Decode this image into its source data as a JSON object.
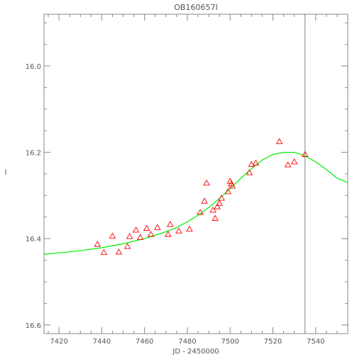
{
  "chart_data": {
    "type": "scatter",
    "title": "OB160657I",
    "xlabel": "JD - 2450000",
    "ylabel": "I",
    "xlim": [
      7413,
      7555
    ],
    "ylim": [
      16.62,
      15.88
    ],
    "y_inverted": true,
    "x_ticks": [
      7420,
      7440,
      7460,
      7480,
      7500,
      7520,
      7540
    ],
    "y_ticks": [
      16.0,
      16.2,
      16.4,
      16.6
    ],
    "y_tick_labels": [
      "16.0",
      "16.2",
      "16.4",
      "16.6"
    ],
    "x_minor_step": 5,
    "y_minor_step": 0.05,
    "grid": false,
    "vertical_marker_x": 7535,
    "colors": {
      "points": "#ff0000",
      "model": "#00ee00",
      "marker_line": "#888888",
      "axes": "#888888"
    },
    "series": [
      {
        "marker": "open-triangle",
        "x": [
          7438,
          7441,
          7445,
          7448,
          7452,
          7453,
          7456,
          7458,
          7461,
          7463,
          7466,
          7471,
          7472,
          7476,
          7481,
          7486,
          7488,
          7489,
          7492,
          7493,
          7494,
          7495,
          7496,
          7499,
          7500,
          7500.5,
          7501,
          7509,
          7510,
          7512,
          7523,
          7527,
          7530,
          7535
        ],
        "y": [
          16.413,
          16.432,
          16.394,
          16.431,
          16.418,
          16.395,
          16.38,
          16.397,
          16.376,
          16.39,
          16.374,
          16.39,
          16.367,
          16.382,
          16.378,
          16.339,
          16.313,
          16.271,
          16.334,
          16.353,
          16.326,
          16.318,
          16.306,
          16.291,
          16.267,
          16.273,
          16.278,
          16.247,
          16.228,
          16.225,
          16.175,
          16.229,
          16.222,
          16.205
        ]
      }
    ],
    "model": {
      "type": "line",
      "x": [
        7413,
        7420,
        7430,
        7440,
        7450,
        7460,
        7470,
        7475,
        7480,
        7485,
        7490,
        7495,
        7500,
        7505,
        7510,
        7515,
        7520,
        7525,
        7530,
        7535,
        7540,
        7545,
        7550,
        7555
      ],
      "y": [
        16.436,
        16.433,
        16.428,
        16.421,
        16.412,
        16.4,
        16.384,
        16.374,
        16.361,
        16.346,
        16.328,
        16.307,
        16.284,
        16.26,
        16.238,
        16.218,
        16.205,
        16.2,
        16.2,
        16.208,
        16.222,
        16.24,
        16.26,
        16.27
      ]
    }
  }
}
